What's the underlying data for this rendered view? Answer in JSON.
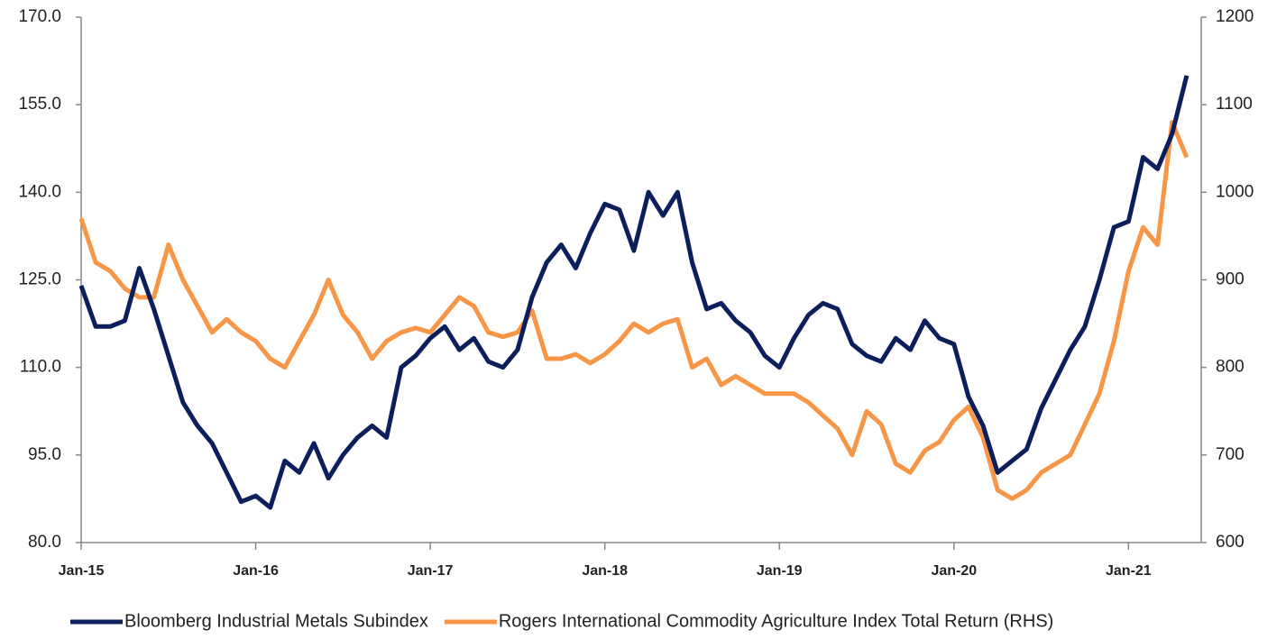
{
  "chart_data": {
    "type": "line",
    "x": [
      "2015-01",
      "2015-02",
      "2015-03",
      "2015-04",
      "2015-05",
      "2015-06",
      "2015-07",
      "2015-08",
      "2015-09",
      "2015-10",
      "2015-11",
      "2015-12",
      "2016-01",
      "2016-02",
      "2016-03",
      "2016-04",
      "2016-05",
      "2016-06",
      "2016-07",
      "2016-08",
      "2016-09",
      "2016-10",
      "2016-11",
      "2016-12",
      "2017-01",
      "2017-02",
      "2017-03",
      "2017-04",
      "2017-05",
      "2017-06",
      "2017-07",
      "2017-08",
      "2017-09",
      "2017-10",
      "2017-11",
      "2017-12",
      "2018-01",
      "2018-02",
      "2018-03",
      "2018-04",
      "2018-05",
      "2018-06",
      "2018-07",
      "2018-08",
      "2018-09",
      "2018-10",
      "2018-11",
      "2018-12",
      "2019-01",
      "2019-02",
      "2019-03",
      "2019-04",
      "2019-05",
      "2019-06",
      "2019-07",
      "2019-08",
      "2019-09",
      "2019-10",
      "2019-11",
      "2019-12",
      "2020-01",
      "2020-02",
      "2020-03",
      "2020-04",
      "2020-05",
      "2020-06",
      "2020-07",
      "2020-08",
      "2020-09",
      "2020-10",
      "2020-11",
      "2020-12",
      "2021-01",
      "2021-02",
      "2021-03",
      "2021-04",
      "2021-05"
    ],
    "series": [
      {
        "name": "Bloomberg Industrial Metals Subindex",
        "color": "#0c1e5b",
        "values": [
          124,
          117,
          117,
          118,
          127,
          120,
          112,
          104,
          100,
          97,
          92,
          87,
          88,
          86,
          94,
          92,
          97,
          91,
          95,
          98,
          100,
          98,
          110,
          112,
          115,
          117,
          113,
          115,
          111,
          110,
          113,
          122,
          128,
          131,
          127,
          133,
          138,
          137,
          130,
          140,
          136,
          140,
          128,
          120,
          121,
          118,
          116,
          112,
          110,
          115,
          119,
          121,
          120,
          114,
          112,
          111,
          115,
          113,
          118,
          115,
          114,
          105,
          100,
          92,
          94,
          96,
          103,
          108,
          113,
          117,
          125,
          134,
          135,
          146,
          144,
          150,
          160
        ]
      },
      {
        "name": "Rogers International Commodity Agriculture Index Total Return (RHS)",
        "color": "#f79646",
        "axis": "y2",
        "values": [
          970,
          920,
          910,
          890,
          880,
          880,
          940,
          900,
          870,
          840,
          855,
          840,
          830,
          810,
          800,
          830,
          860,
          900,
          860,
          840,
          810,
          830,
          840,
          845,
          840,
          860,
          880,
          870,
          840,
          835,
          840,
          865,
          810,
          810,
          815,
          805,
          815,
          830,
          850,
          840,
          850,
          855,
          800,
          810,
          780,
          790,
          780,
          770,
          770,
          770,
          760,
          745,
          730,
          700,
          750,
          735,
          690,
          680,
          705,
          715,
          740,
          755,
          720,
          660,
          650,
          660,
          680,
          690,
          700,
          735,
          770,
          830,
          910,
          960,
          940,
          1080,
          1040
        ]
      }
    ],
    "xlim": [
      "2015-01",
      "2021-06"
    ],
    "xticks": [
      {
        "value": "2015-01",
        "label": "Jan-15"
      },
      {
        "value": "2016-01",
        "label": "Jan-16"
      },
      {
        "value": "2017-01",
        "label": "Jan-17"
      },
      {
        "value": "2018-01",
        "label": "Jan-18"
      },
      {
        "value": "2019-01",
        "label": "Jan-19"
      },
      {
        "value": "2020-01",
        "label": "Jan-20"
      },
      {
        "value": "2021-01",
        "label": "Jan-21"
      }
    ],
    "ylim": [
      80,
      170
    ],
    "yticks": [
      {
        "value": 80,
        "label": "80.0"
      },
      {
        "value": 95,
        "label": "95.0"
      },
      {
        "value": 110,
        "label": "110.0"
      },
      {
        "value": 125,
        "label": "125.0"
      },
      {
        "value": 140,
        "label": "140.0"
      },
      {
        "value": 155,
        "label": "155.0"
      },
      {
        "value": 170,
        "label": "170.0"
      }
    ],
    "y2lim": [
      600,
      1200
    ],
    "y2ticks": [
      600,
      700,
      800,
      900,
      1000,
      1100,
      1200
    ],
    "legend": "bottom"
  }
}
